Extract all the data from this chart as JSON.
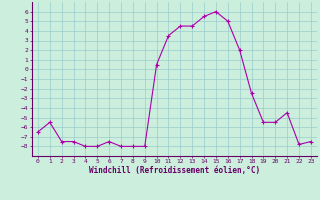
{
  "x": [
    0,
    1,
    2,
    3,
    4,
    5,
    6,
    7,
    8,
    9,
    10,
    11,
    12,
    13,
    14,
    15,
    16,
    17,
    18,
    19,
    20,
    21,
    22,
    23
  ],
  "y": [
    -6.5,
    -5.5,
    -7.5,
    -7.5,
    -8.0,
    -8.0,
    -7.5,
    -8.0,
    -8.0,
    -8.0,
    0.5,
    3.5,
    4.5,
    4.5,
    5.5,
    6.0,
    5.0,
    2.0,
    -2.5,
    -5.5,
    -5.5,
    -4.5,
    -7.8,
    -7.5
  ],
  "xlim": [
    -0.5,
    23.5
  ],
  "ylim": [
    -9,
    7
  ],
  "yticks": [
    6,
    5,
    4,
    3,
    2,
    1,
    0,
    -1,
    -2,
    -3,
    -4,
    -5,
    -6,
    -7,
    -8
  ],
  "xticks": [
    0,
    1,
    2,
    3,
    4,
    5,
    6,
    7,
    8,
    9,
    10,
    11,
    12,
    13,
    14,
    15,
    16,
    17,
    18,
    19,
    20,
    21,
    22,
    23
  ],
  "xlabel": "Windchill (Refroidissement éolien,°C)",
  "line_color": "#aa00aa",
  "marker_color": "#aa00aa",
  "bg_color": "#cceedd",
  "grid_color": "#99cccc",
  "axis_color": "#660066",
  "label_color": "#660066"
}
